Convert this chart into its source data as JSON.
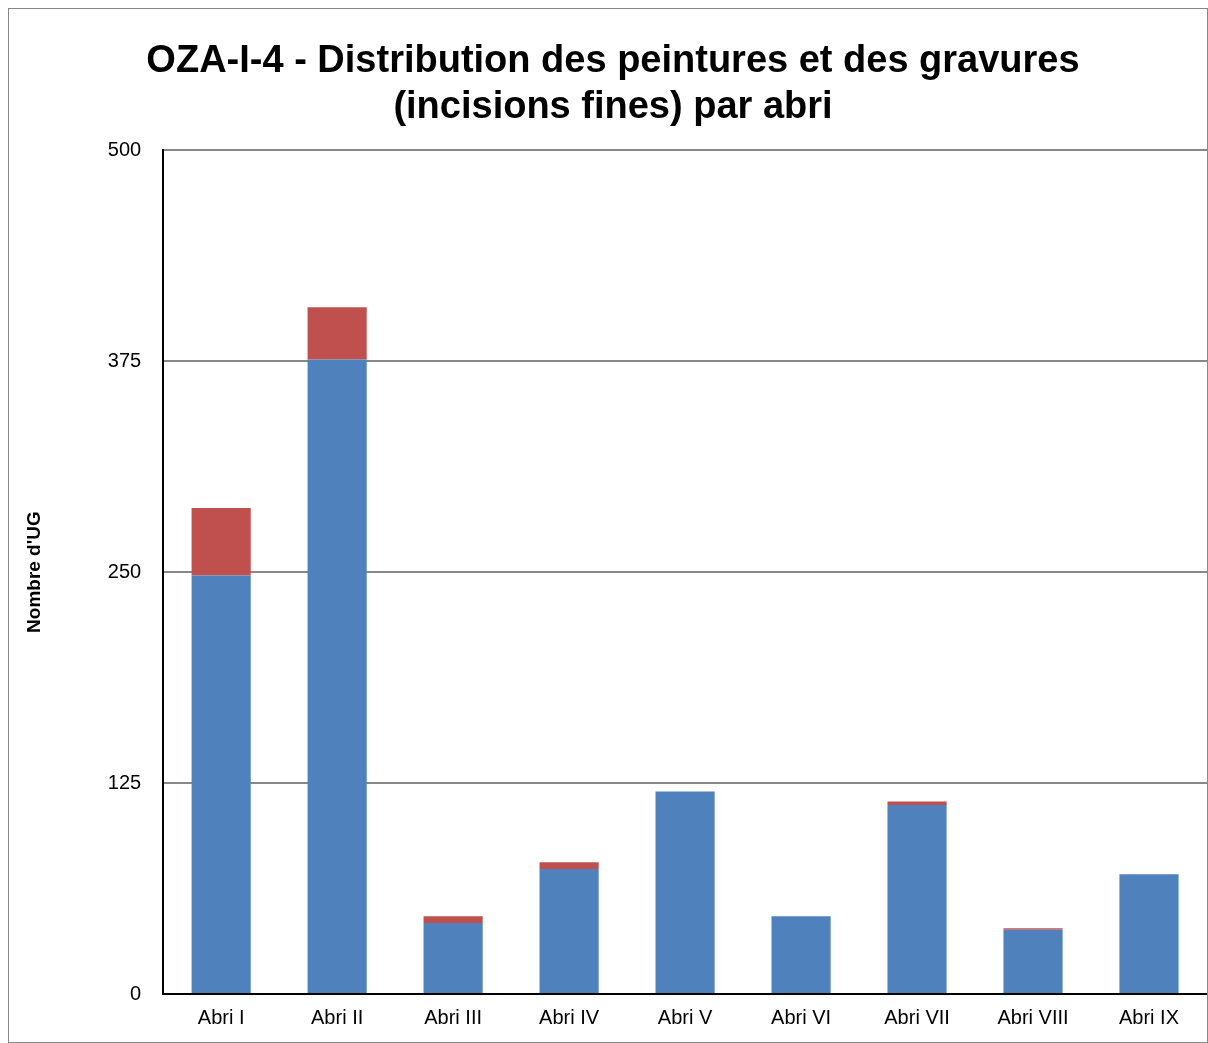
{
  "chart_data": {
    "type": "bar",
    "title": "OZA-I-4 - Distribution des peintures et des gravures (incisions fines) par abri",
    "ylabel": "Nombre d'UG",
    "categories": [
      "Abri I",
      "Abri II",
      "Abri III",
      "Abri IV",
      "Abri V",
      "Abri VI",
      "Abri VII",
      "Abri VIII",
      "Abri IX"
    ],
    "stacked": true,
    "series": [
      {
        "color": "#4f81bd",
        "values": [
          248,
          376,
          42,
          74,
          120,
          46,
          112,
          38,
          71
        ]
      },
      {
        "color": "#c0504d",
        "values": [
          40,
          31,
          4,
          4,
          0,
          0,
          2,
          1,
          0
        ]
      }
    ],
    "ylim": [
      0,
      500
    ],
    "yticks": [
      0,
      125,
      250,
      375,
      500
    ],
    "grid": "y",
    "legend": false
  }
}
